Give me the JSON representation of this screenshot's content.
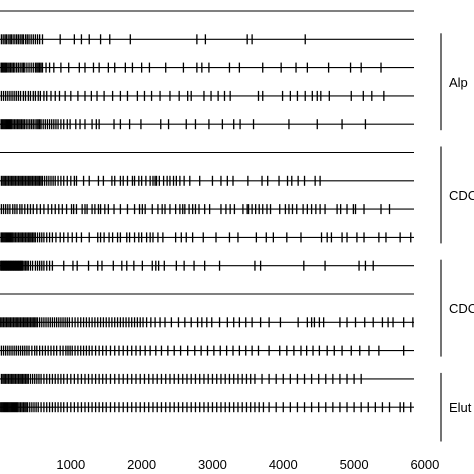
{
  "chart_data": {
    "type": "event-raster",
    "title": "",
    "xlabel": "",
    "ylabel": "",
    "xlim": [
      0,
      6100
    ],
    "x_ticks": [
      1000,
      2000,
      3000,
      4000,
      5000,
      6000
    ],
    "x_tick_labels": [
      "1000",
      "2000",
      "3000",
      "4000",
      "5000",
      "6000"
    ],
    "groups": [
      {
        "label": "Alp",
        "tracks": [
          1,
          4
        ]
      },
      {
        "label": "CDC",
        "tracks": [
          5,
          8
        ]
      },
      {
        "label": "CDC",
        "tracks": [
          9,
          12
        ]
      },
      {
        "label": "Elut",
        "tracks": [
          13,
          15
        ]
      }
    ],
    "tracks": [
      {
        "events": []
      },
      {
        "events": [
          20,
          45,
          70,
          90,
          115,
          140,
          160,
          185,
          210,
          235,
          260,
          285,
          310,
          330,
          360,
          385,
          410,
          440,
          470,
          500,
          530,
          560,
          600,
          850,
          1050,
          1150,
          1260,
          1420,
          1550,
          1840,
          2780,
          2900,
          3490,
          3560,
          4310
        ]
      },
      {
        "events": [
          15,
          30,
          45,
          60,
          75,
          90,
          110,
          130,
          150,
          170,
          190,
          210,
          235,
          260,
          285,
          310,
          330,
          350,
          380,
          410,
          440,
          470,
          500,
          520,
          540,
          560,
          580,
          600,
          650,
          700,
          760,
          860,
          970,
          1120,
          1200,
          1320,
          1400,
          1530,
          1620,
          1770,
          1870,
          2000,
          2110,
          2340,
          2590,
          2780,
          2850,
          2950,
          3240,
          3380,
          3710,
          3970,
          4180,
          4340,
          4640,
          4950,
          5100,
          5380
        ]
      },
      {
        "events": [
          20,
          50,
          80,
          110,
          140,
          170,
          200,
          230,
          260,
          290,
          330,
          360,
          400,
          430,
          470,
          500,
          540,
          570,
          620,
          660,
          720,
          780,
          840,
          920,
          1000,
          1100,
          1200,
          1290,
          1370,
          1470,
          1590,
          1700,
          1800,
          1940,
          2040,
          2140,
          2260,
          2400,
          2530,
          2650,
          2700,
          2880,
          2980,
          3080,
          3170,
          3250,
          3650,
          3710,
          3990,
          4100,
          4200,
          4310,
          4410,
          4480,
          4530,
          4650,
          4960,
          5130,
          5250,
          5420
        ]
      },
      {
        "events": [
          15,
          30,
          45,
          60,
          75,
          90,
          105,
          120,
          135,
          150,
          165,
          185,
          205,
          225,
          245,
          265,
          285,
          305,
          325,
          345,
          370,
          395,
          420,
          445,
          470,
          495,
          520,
          540,
          560,
          580,
          610,
          640,
          670,
          700,
          730,
          760,
          790,
          820,
          860,
          900,
          950,
          990,
          1070,
          1130,
          1200,
          1300,
          1360,
          1400,
          1610,
          1700,
          1830,
          1990,
          2270,
          2380,
          2630,
          2760,
          2950,
          3140,
          3300,
          3390,
          3580,
          4080,
          4480,
          4830,
          5160
        ]
      },
      {
        "events": []
      },
      {
        "events": [
          20,
          40,
          60,
          80,
          100,
          120,
          140,
          160,
          180,
          200,
          220,
          240,
          260,
          280,
          300,
          320,
          340,
          360,
          380,
          400,
          420,
          440,
          460,
          480,
          500,
          520,
          540,
          560,
          580,
          600,
          630,
          660,
          690,
          720,
          750,
          780,
          820,
          860,
          900,
          950,
          1000,
          1050,
          1080,
          1180,
          1260,
          1390,
          1460,
          1580,
          1620,
          1700,
          1740,
          1800,
          1870,
          1900,
          1960,
          2000,
          2060,
          2120,
          2160,
          2190,
          2210,
          2250,
          2310,
          2360,
          2400,
          2450,
          2490,
          2540,
          2600,
          2680,
          2820,
          3000,
          3120,
          3210,
          3290,
          3500,
          3700,
          3780,
          3940,
          4060,
          4120,
          4210,
          4300,
          4450,
          4520
        ]
      },
      {
        "events": [
          20,
          50,
          80,
          110,
          140,
          180,
          210,
          240,
          280,
          310,
          350,
          390,
          430,
          470,
          520,
          570,
          620,
          680,
          730,
          780,
          830,
          880,
          940,
          1010,
          1040,
          1080,
          1160,
          1200,
          1230,
          1300,
          1340,
          1390,
          1420,
          1480,
          1530,
          1610,
          1700,
          1800,
          1900,
          1970,
          2010,
          2050,
          2150,
          2230,
          2290,
          2330,
          2400,
          2480,
          2540,
          2580,
          2610,
          2670,
          2720,
          2760,
          2810,
          2890,
          2960,
          3120,
          3190,
          3250,
          3310,
          3430,
          3490,
          3510,
          3560,
          3610,
          3660,
          3710,
          3770,
          3820,
          3950,
          4030,
          4080,
          4130,
          4190,
          4280,
          4340,
          4400,
          4460,
          4520,
          4590,
          4760,
          4810,
          4900,
          4990,
          5020,
          5140,
          5380,
          5500
        ]
      },
      {
        "events": [
          15,
          30,
          45,
          60,
          75,
          90,
          105,
          120,
          135,
          150,
          165,
          180,
          200,
          220,
          240,
          260,
          280,
          300,
          320,
          340,
          360,
          380,
          400,
          420,
          440,
          460,
          480,
          500,
          530,
          560,
          590,
          620,
          660,
          700,
          740,
          790,
          850,
          900,
          960,
          1020,
          1080,
          1150,
          1260,
          1380,
          1420,
          1470,
          1540,
          1590,
          1660,
          1700,
          1790,
          1830,
          1900,
          1960,
          2000,
          2070,
          2120,
          2160,
          2230,
          2300,
          2480,
          2560,
          2630,
          2720,
          2870,
          3050,
          3240,
          3360,
          3620,
          3760,
          3860,
          4050,
          4250,
          4540,
          4620,
          4680,
          4830,
          4900,
          5040,
          5140,
          5350,
          5450,
          5650,
          5800
        ]
      },
      {
        "events": [
          10,
          20,
          30,
          40,
          50,
          60,
          70,
          80,
          90,
          100,
          110,
          120,
          130,
          140,
          150,
          160,
          170,
          180,
          190,
          200,
          210,
          220,
          230,
          240,
          250,
          260,
          270,
          280,
          290,
          300,
          310,
          320,
          340,
          360,
          380,
          400,
          430,
          460,
          500,
          530,
          560,
          590,
          620,
          660,
          700,
          740,
          900,
          1030,
          1090,
          1250,
          1380,
          1440,
          1600,
          1720,
          1790,
          1890,
          2010,
          2150,
          2200,
          2240,
          2320,
          2490,
          2600,
          2740,
          2890,
          3100,
          3600,
          3680,
          4290,
          4590,
          5070,
          5160,
          5270
        ]
      },
      {
        "events": []
      },
      {
        "events": [
          10,
          30,
          50,
          70,
          90,
          110,
          130,
          150,
          170,
          190,
          210,
          230,
          250,
          270,
          290,
          310,
          330,
          350,
          370,
          390,
          410,
          430,
          450,
          470,
          490,
          510,
          530,
          560,
          590,
          620,
          650,
          680,
          710,
          740,
          770,
          800,
          830,
          860,
          890,
          920,
          950,
          980,
          1020,
          1060,
          1100,
          1140,
          1180,
          1220,
          1260,
          1300,
          1340,
          1380,
          1420,
          1460,
          1500,
          1540,
          1580,
          1620,
          1660,
          1700,
          1740,
          1780,
          1820,
          1860,
          1900,
          1940,
          1980,
          2020,
          2070,
          2130,
          2190,
          2260,
          2330,
          2420,
          2520,
          2610,
          2700,
          2790,
          2850,
          2920,
          2990,
          3100,
          3210,
          3300,
          3380,
          3470,
          3560,
          3680,
          3800,
          3960,
          4210,
          4340,
          4400,
          4440,
          4510,
          4570,
          4800,
          4900,
          5020,
          5150,
          5270,
          5400,
          5480,
          5550,
          5700,
          5830,
          5910,
          5980
        ]
      },
      {
        "events": [
          20,
          50,
          80,
          110,
          140,
          170,
          200,
          230,
          260,
          290,
          320,
          350,
          380,
          410,
          450,
          490,
          520,
          560,
          600,
          640,
          680,
          720,
          760,
          800,
          850,
          890,
          930,
          960,
          990,
          1020,
          1060,
          1100,
          1140,
          1180,
          1220,
          1260,
          1300,
          1350,
          1400,
          1450,
          1500,
          1560,
          1620,
          1680,
          1740,
          1800,
          1860,
          1920,
          1980,
          2050,
          2120,
          2200,
          2280,
          2370,
          2460,
          2550,
          2650,
          2750,
          2840,
          2930,
          3020,
          3110,
          3200,
          3290,
          3380,
          3470,
          3560,
          3650,
          3800,
          3950,
          4050,
          4150,
          4250,
          4330,
          4420,
          4510,
          4620,
          4720,
          4830,
          4960,
          5080,
          5210,
          5350,
          5700
        ]
      },
      {
        "events": [
          20,
          40,
          60,
          80,
          100,
          120,
          140,
          160,
          180,
          200,
          220,
          240,
          260,
          280,
          300,
          320,
          340,
          360,
          380,
          400,
          430,
          460,
          490,
          520,
          550,
          580,
          620,
          660,
          700,
          740,
          780,
          820,
          860,
          900,
          950,
          1000,
          1050,
          1100,
          1150,
          1200,
          1250,
          1300,
          1350,
          1400,
          1450,
          1500,
          1560,
          1620,
          1680,
          1740,
          1800,
          1860,
          1920,
          1980,
          2040,
          2100,
          2160,
          2220,
          2280,
          2340,
          2400,
          2460,
          2520,
          2580,
          2640,
          2700,
          2760,
          2820,
          2880,
          2940,
          3000,
          3060,
          3120,
          3180,
          3240,
          3300,
          3360,
          3420,
          3480,
          3540,
          3600,
          3700,
          3800,
          3900,
          4000,
          4100,
          4200,
          4300,
          4400,
          4500,
          4600,
          4700,
          4800,
          4900,
          5000,
          5100
        ]
      },
      {
        "events": [
          10,
          25,
          40,
          55,
          70,
          85,
          100,
          115,
          130,
          145,
          160,
          175,
          190,
          205,
          220,
          235,
          250,
          270,
          290,
          310,
          330,
          350,
          370,
          390,
          420,
          450,
          480,
          510,
          540,
          580,
          620,
          660,
          700,
          740,
          780,
          820,
          860,
          900,
          950,
          1000,
          1050,
          1100,
          1150,
          1200,
          1250,
          1300,
          1350,
          1400,
          1450,
          1500,
          1560,
          1620,
          1680,
          1740,
          1800,
          1860,
          1920,
          1980,
          2040,
          2100,
          2160,
          2220,
          2280,
          2340,
          2400,
          2460,
          2520,
          2580,
          2640,
          2700,
          2760,
          2820,
          2880,
          2940,
          3000,
          3060,
          3120,
          3180,
          3240,
          3300,
          3360,
          3420,
          3480,
          3540,
          3600,
          3660,
          3720,
          3800,
          3900,
          4000,
          4100,
          4200,
          4300,
          4400,
          4500,
          4600,
          4700,
          4800,
          4900,
          5000,
          5100,
          5200,
          5300,
          5400,
          5500,
          5650,
          5700,
          5800
        ]
      }
    ]
  },
  "colors": {
    "ink": "#000000",
    "background": "#ffffff"
  }
}
